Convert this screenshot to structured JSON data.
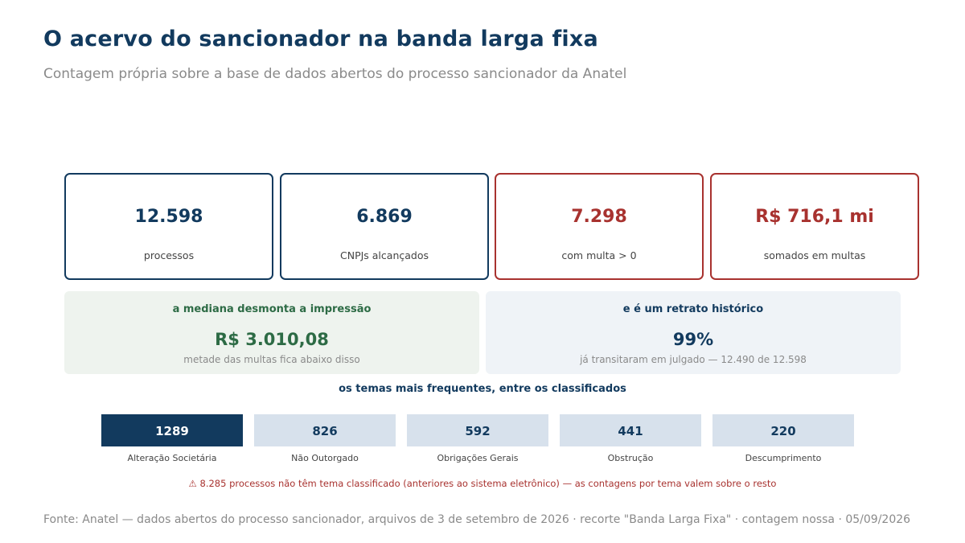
{
  "header": {
    "title": "O acervo do sancionador na banda larga fixa",
    "subtitle": "Contagem própria sobre a base de dados abertos do processo sancionador da Anatel"
  },
  "cards": [
    {
      "value": "12.598",
      "label": "processos",
      "accent": "#123a5e"
    },
    {
      "value": "6.869",
      "label": "CNPJs alcançados",
      "accent": "#123a5e"
    },
    {
      "value": "7.298",
      "label": "com multa > 0",
      "accent": "#a8322f"
    },
    {
      "value": "R$ 716,1 mi",
      "label": "somados em multas",
      "accent": "#a8322f"
    }
  ],
  "panels": {
    "median": {
      "heading": "a mediana desmonta a impressão",
      "value": "R$ 3.010,08",
      "note": "metade das multas fica abaixo disso"
    },
    "history": {
      "heading": "e é um retrato histórico",
      "value": "99%",
      "note": "já transitaram em julgado — 12.490 de 12.598"
    }
  },
  "chart_data": {
    "type": "bar",
    "title": "os temas mais frequentes, entre os classificados",
    "categories": [
      "Alteração Societária",
      "Não Outorgado",
      "Obrigações Gerais",
      "Obstrução",
      "Descumprimento"
    ],
    "values": [
      1289,
      826,
      592,
      441,
      220
    ],
    "highlight_index": 0,
    "colors": {
      "highlight": "#123a5e",
      "default": "#d7e1ec",
      "highlight_text": "#ffffff",
      "default_text": "#123a5e"
    }
  },
  "warning": "⚠ 8.285 processos não têm tema classificado (anteriores ao sistema eletrônico) — as contagens por tema valem sobre o resto",
  "source": "Fonte: Anatel — dados abertos do processo sancionador, arquivos de 3 de setembro de 2026 · recorte \"Banda Larga Fixa\" · contagem nossa · 05/09/2026"
}
